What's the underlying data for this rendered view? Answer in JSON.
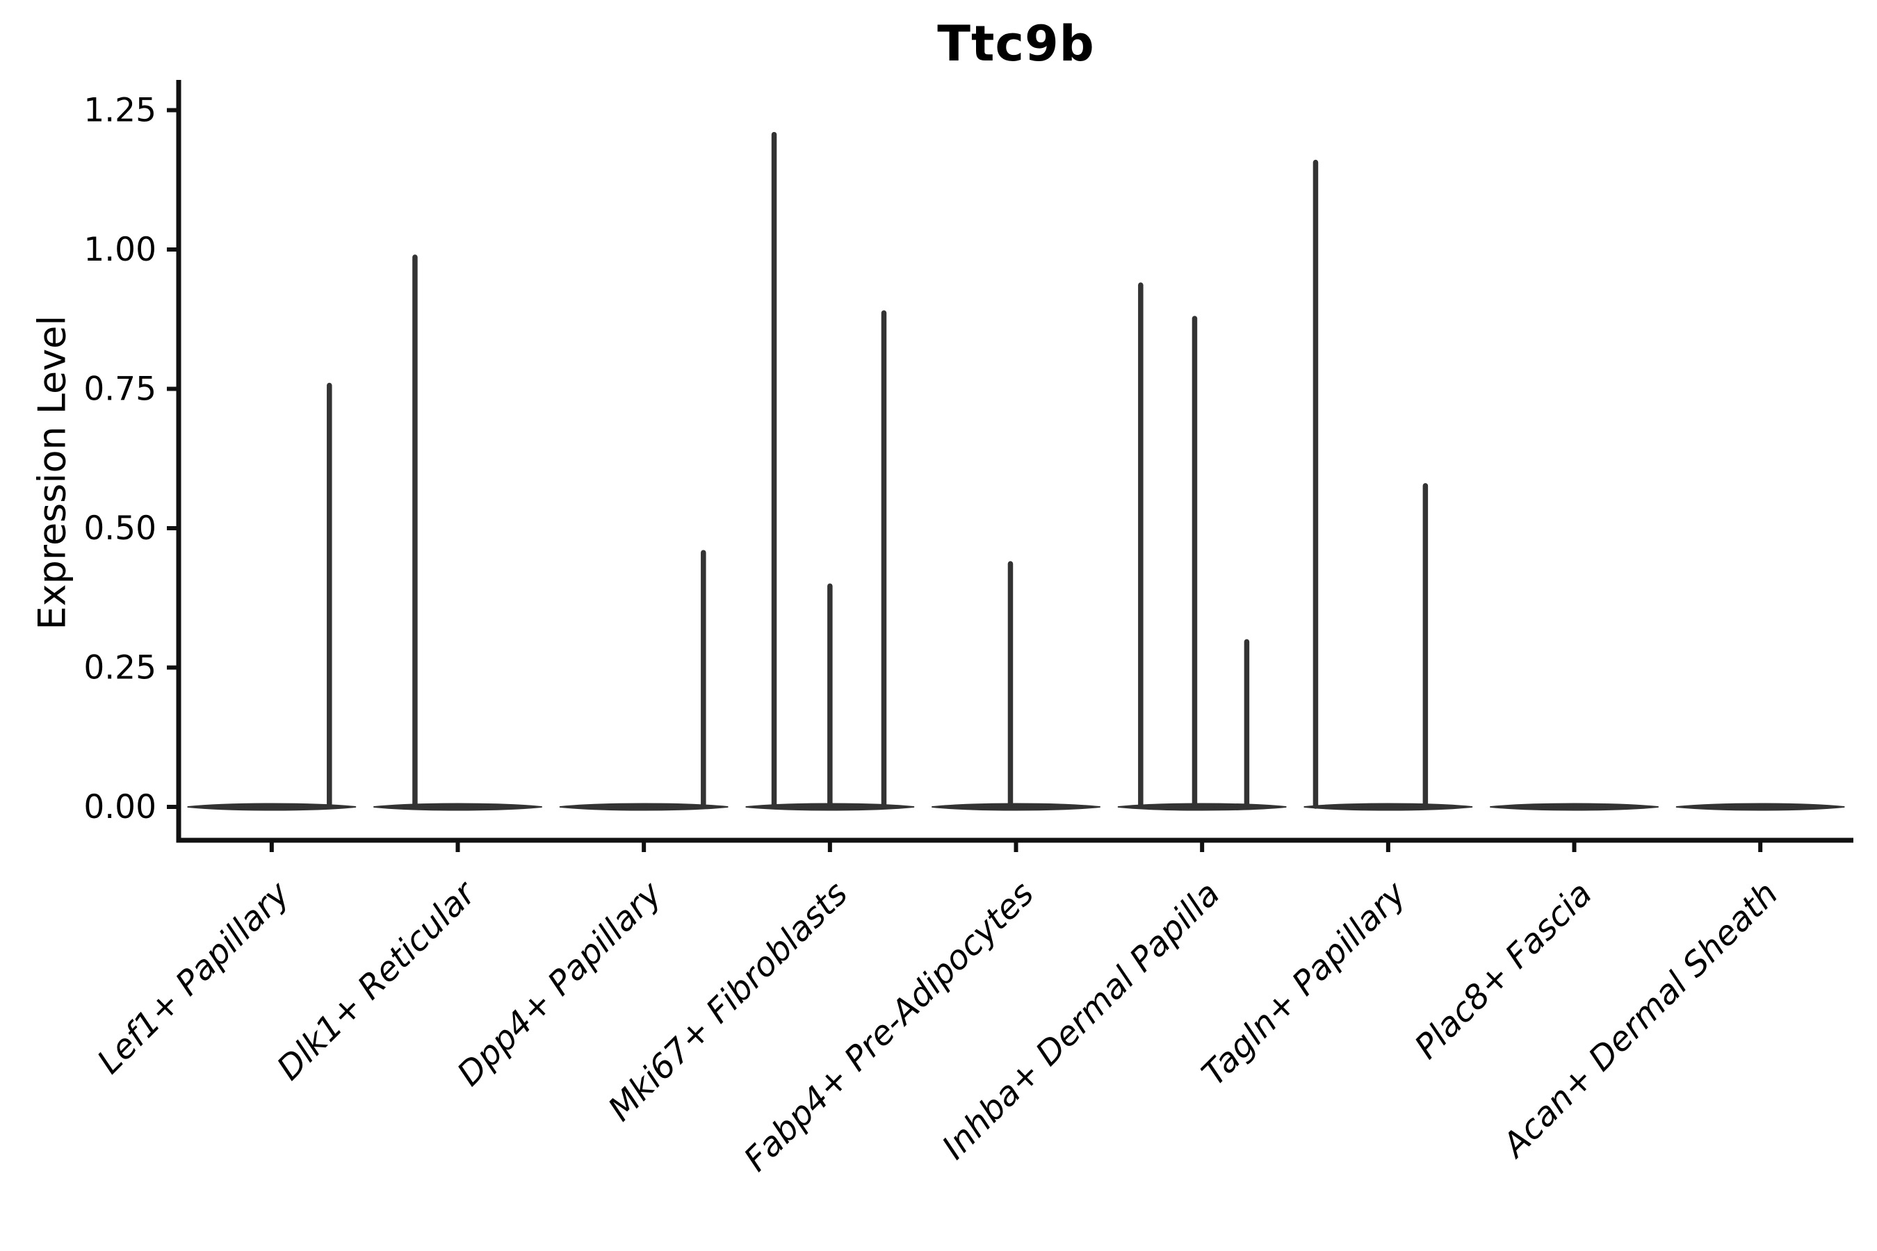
{
  "figure": {
    "title": "Ttc9b",
    "y_axis_label": "Expression Level",
    "colors": {
      "violin": "#333333",
      "axis": "#111111",
      "text": "#000000",
      "background": "#ffffff"
    }
  },
  "chart_data": {
    "type": "violin",
    "title": "Ttc9b",
    "xlabel": "",
    "ylabel": "Expression Level",
    "ylim": [
      -0.06,
      1.3
    ],
    "yticks": [
      0.0,
      0.25,
      0.5,
      0.75,
      1.0,
      1.25
    ],
    "ytick_labels": [
      "0.00",
      "0.25",
      "0.50",
      "0.75",
      "1.00",
      "1.25"
    ],
    "grid": false,
    "legend_position": "none",
    "baseline_value": 0,
    "baseline_width_fraction": 0.9,
    "categories": [
      "Lef1+ Papillary",
      "Dlk1+ Reticular",
      "Dpp4+ Papillary",
      "Mki67+ Fibroblasts",
      "Fabp4+ Pre-Adipocytes",
      "Inhba+ Dermal Papilla",
      "Tagln+ Papillary",
      "Plac8+ Fascia",
      "Acan+ Dermal Sheath"
    ],
    "violins": [
      {
        "category": "Lef1+ Papillary",
        "spikes": [
          {
            "offset": 0.31,
            "value": 0.76
          }
        ]
      },
      {
        "category": "Dlk1+ Reticular",
        "spikes": [
          {
            "offset": -0.23,
            "value": 0.99
          }
        ]
      },
      {
        "category": "Dpp4+ Papillary",
        "spikes": [
          {
            "offset": 0.32,
            "value": 0.46
          }
        ]
      },
      {
        "category": "Mki67+ Fibroblasts",
        "spikes": [
          {
            "offset": -0.3,
            "value": 1.21
          },
          {
            "offset": 0.0,
            "value": 0.4
          },
          {
            "offset": 0.29,
            "value": 0.89
          }
        ]
      },
      {
        "category": "Fabp4+ Pre-Adipocytes",
        "spikes": [
          {
            "offset": -0.03,
            "value": 0.44
          }
        ]
      },
      {
        "category": "Inhba+ Dermal Papilla",
        "spikes": [
          {
            "offset": -0.33,
            "value": 0.94
          },
          {
            "offset": -0.04,
            "value": 0.88
          },
          {
            "offset": 0.24,
            "value": 0.3
          }
        ]
      },
      {
        "category": "Tagln+ Papillary",
        "spikes": [
          {
            "offset": -0.39,
            "value": 1.16
          },
          {
            "offset": 0.2,
            "value": 0.58
          }
        ]
      },
      {
        "category": "Plac8+ Fascia",
        "spikes": []
      },
      {
        "category": "Acan+ Dermal Sheath",
        "spikes": []
      }
    ]
  }
}
